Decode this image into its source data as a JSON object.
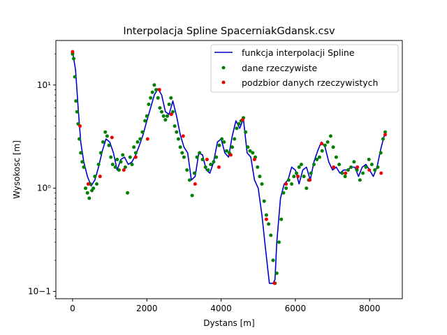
{
  "chart_data": {
    "type": "line",
    "title": "Interpolacja Spline SpacerniakGdansk.csv",
    "xlabel": "Dystans [m]",
    "ylabel": "Wysokosc [m]",
    "xlim": [
      -450,
      8880
    ],
    "ylim": [
      0.085,
      27
    ],
    "y_scale": "log",
    "x_ticks": [
      0,
      2000,
      4000,
      6000,
      8000
    ],
    "x_tick_labels": [
      "0",
      "2000",
      "4000",
      "6000",
      "8000"
    ],
    "y_ticks": [
      0.1,
      1,
      10
    ],
    "y_tick_labels": [
      "10−1",
      "10⁰",
      "10¹"
    ],
    "grid": false,
    "legend_position": "top-right",
    "series": [
      {
        "name": "funkcja interpolacji Spline",
        "kind": "line",
        "color": "#0000cc",
        "x": [
          0,
          80,
          150,
          220,
          300,
          400,
          500,
          600,
          700,
          800,
          900,
          1000,
          1100,
          1200,
          1300,
          1400,
          1500,
          1600,
          1700,
          1800,
          1900,
          2000,
          2100,
          2200,
          2300,
          2400,
          2500,
          2600,
          2700,
          2800,
          2900,
          3000,
          3100,
          3200,
          3300,
          3400,
          3500,
          3600,
          3700,
          3800,
          3900,
          4000,
          4100,
          4200,
          4300,
          4400,
          4500,
          4600,
          4700,
          4800,
          4900,
          5000,
          5100,
          5200,
          5300,
          5400,
          5450,
          5500,
          5600,
          5700,
          5800,
          5900,
          6000,
          6100,
          6200,
          6300,
          6400,
          6500,
          6600,
          6700,
          6800,
          6900,
          7000,
          7100,
          7200,
          7300,
          7400,
          7500,
          7600,
          7700,
          7800,
          7900,
          8000,
          8100,
          8200,
          8300,
          8400
        ],
        "y": [
          21,
          14,
          6,
          2.8,
          1.8,
          1.3,
          1.05,
          1.2,
          1.6,
          2.3,
          3.0,
          2.8,
          2.2,
          1.5,
          1.9,
          2.0,
          1.7,
          1.8,
          2.1,
          2.6,
          3.3,
          4.5,
          6.0,
          8.0,
          9.2,
          8.0,
          5.5,
          5.2,
          7.0,
          5.0,
          3.3,
          2.5,
          2.2,
          1.2,
          1.3,
          2.2,
          2.1,
          1.5,
          1.4,
          1.8,
          2.8,
          3.0,
          2.2,
          2.0,
          3.2,
          4.5,
          3.8,
          4.7,
          2.2,
          2.0,
          1.2,
          1.0,
          0.55,
          0.25,
          0.12,
          0.12,
          0.13,
          0.3,
          0.8,
          1.1,
          1.2,
          1.6,
          1.5,
          1.1,
          1.5,
          1.6,
          1.2,
          1.8,
          2.3,
          2.8,
          2.5,
          1.8,
          1.5,
          1.6,
          1.4,
          1.5,
          1.5,
          1.6,
          1.6,
          1.3,
          1.6,
          1.7,
          1.5,
          1.3,
          1.6,
          2.4,
          3.3
        ]
      },
      {
        "name": "dane rzeczywiste",
        "kind": "scatter",
        "color": "#008000",
        "x": [
          0,
          30,
          60,
          90,
          120,
          150,
          180,
          220,
          260,
          300,
          350,
          400,
          450,
          480,
          520,
          560,
          600,
          650,
          700,
          760,
          820,
          880,
          930,
          980,
          1030,
          1080,
          1150,
          1200,
          1250,
          1300,
          1350,
          1420,
          1480,
          1550,
          1600,
          1650,
          1700,
          1750,
          1820,
          1880,
          1950,
          2000,
          2050,
          2100,
          2150,
          2200,
          2250,
          2300,
          2350,
          2400,
          2450,
          2500,
          2550,
          2600,
          2650,
          2700,
          2750,
          2800,
          2850,
          2900,
          2950,
          3000,
          3080,
          3150,
          3220,
          3280,
          3350,
          3420,
          3500,
          3580,
          3650,
          3720,
          3800,
          3870,
          3950,
          4020,
          4080,
          4150,
          4220,
          4300,
          4360,
          4420,
          4480,
          4540,
          4600,
          4660,
          4720,
          4780,
          4850,
          4920,
          4980,
          5040,
          5100,
          5160,
          5220,
          5280,
          5340,
          5400,
          5450,
          5500,
          5560,
          5620,
          5680,
          5750,
          5820,
          5900,
          5960,
          6030,
          6100,
          6160,
          6230,
          6300,
          6360,
          6420,
          6500,
          6580,
          6650,
          6720,
          6800,
          6870,
          6950,
          7020,
          7100,
          7180,
          7260,
          7340,
          7420,
          7500,
          7580,
          7660,
          7740,
          7820,
          7900,
          7980,
          8060,
          8140,
          8220,
          8300,
          8360,
          8420
        ],
        "y": [
          20,
          18,
          12,
          7,
          5.5,
          4.2,
          3.0,
          2.2,
          1.8,
          1.6,
          1.0,
          0.9,
          0.8,
          1.1,
          0.95,
          1.0,
          1.3,
          1.1,
          1.7,
          2.2,
          2.8,
          3.5,
          3.2,
          2.6,
          2.0,
          1.7,
          1.6,
          1.9,
          1.5,
          1.8,
          2.1,
          1.6,
          0.9,
          2.0,
          1.7,
          2.5,
          2.2,
          2.8,
          3.0,
          3.5,
          4.5,
          5.0,
          6.5,
          7.5,
          8.5,
          10.0,
          9.0,
          7.5,
          6.0,
          5.5,
          5.0,
          4.6,
          5.0,
          6.5,
          7.5,
          5.5,
          4.0,
          3.5,
          3.0,
          2.5,
          2.2,
          2.0,
          1.5,
          1.2,
          0.85,
          1.4,
          2.0,
          2.2,
          1.9,
          1.6,
          1.5,
          1.7,
          1.8,
          2.0,
          2.6,
          3.0,
          2.8,
          2.3,
          2.2,
          2.5,
          3.0,
          3.8,
          4.2,
          4.5,
          4.8,
          3.5,
          2.5,
          2.3,
          2.2,
          2.0,
          1.6,
          1.3,
          1.1,
          0.75,
          0.55,
          0.45,
          0.35,
          0.2,
          0.12,
          0.15,
          0.3,
          0.5,
          0.9,
          1.0,
          1.2,
          1.1,
          1.3,
          1.4,
          1.6,
          1.7,
          1.3,
          1.0,
          1.2,
          1.4,
          1.7,
          1.9,
          2.0,
          2.3,
          2.6,
          2.8,
          3.2,
          2.5,
          2.0,
          1.7,
          1.4,
          1.3,
          1.5,
          1.6,
          1.8,
          1.5,
          1.2,
          1.4,
          1.6,
          1.9,
          1.7,
          1.5,
          1.6,
          2.2,
          3.0,
          3.5
        ]
      },
      {
        "name": "podzbior danych rzeczywistych",
        "kind": "scatter",
        "color": "#ee0000",
        "x": [
          0,
          200,
          420,
          740,
          1060,
          1380,
          1700,
          2020,
          2340,
          2660,
          2980,
          3300,
          3620,
          3940,
          4260,
          4580,
          4900,
          5220,
          5440,
          5750,
          6070,
          6390,
          6710,
          7030,
          7350,
          7670,
          7990,
          8310,
          8420
        ],
        "y": [
          21,
          4.0,
          1.1,
          1.3,
          3.1,
          1.5,
          2.0,
          3.0,
          9.0,
          5.2,
          3.2,
          1.1,
          1.9,
          1.6,
          2.1,
          4.6,
          1.9,
          0.5,
          0.12,
          1.1,
          1.3,
          1.2,
          2.7,
          1.6,
          1.4,
          1.6,
          1.5,
          1.4,
          3.3
        ]
      }
    ]
  }
}
